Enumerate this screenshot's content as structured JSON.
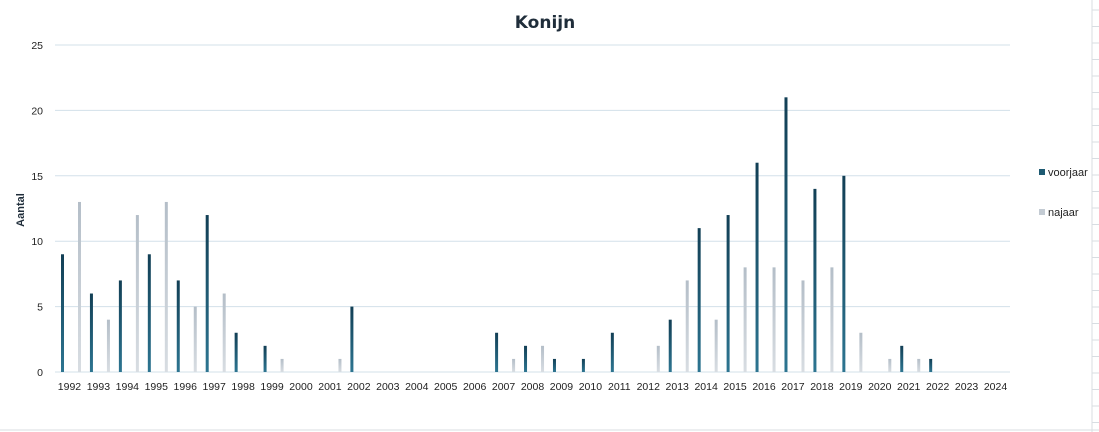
{
  "chart_data": {
    "type": "bar",
    "title": "Konijn",
    "xlabel": "",
    "ylabel": "Aantal",
    "ylim": [
      0,
      25
    ],
    "yticks": [
      0,
      5,
      10,
      15,
      20,
      25
    ],
    "grid": true,
    "legend_position": "right",
    "categories": [
      "1992",
      "1993",
      "1994",
      "1995",
      "1996",
      "1997",
      "1998",
      "1999",
      "2000",
      "2001",
      "2002",
      "2003",
      "2004",
      "2005",
      "2006",
      "2007",
      "2008",
      "2009",
      "2010",
      "2011",
      "2012",
      "2013",
      "2014",
      "2015",
      "2016",
      "2017",
      "2018",
      "2019",
      "2020",
      "2021",
      "2022",
      "2023",
      "2024"
    ],
    "series": [
      {
        "name": "voorjaar",
        "color": "#1d5a72",
        "values": [
          9,
          6,
          7,
          9,
          7,
          12,
          3,
          2,
          0,
          0,
          5,
          0,
          0,
          0,
          0,
          3,
          2,
          1,
          1,
          3,
          0,
          4,
          11,
          12,
          16,
          21,
          14,
          15,
          0,
          2,
          1,
          0,
          0
        ]
      },
      {
        "name": "najaar",
        "color": "#c3cbd3",
        "values": [
          13,
          4,
          12,
          13,
          5,
          6,
          0,
          1,
          0,
          1,
          0,
          0,
          0,
          0,
          0,
          1,
          2,
          0,
          0,
          0,
          2,
          7,
          4,
          8,
          8,
          7,
          8,
          3,
          1,
          1,
          0,
          0,
          0
        ]
      }
    ]
  }
}
